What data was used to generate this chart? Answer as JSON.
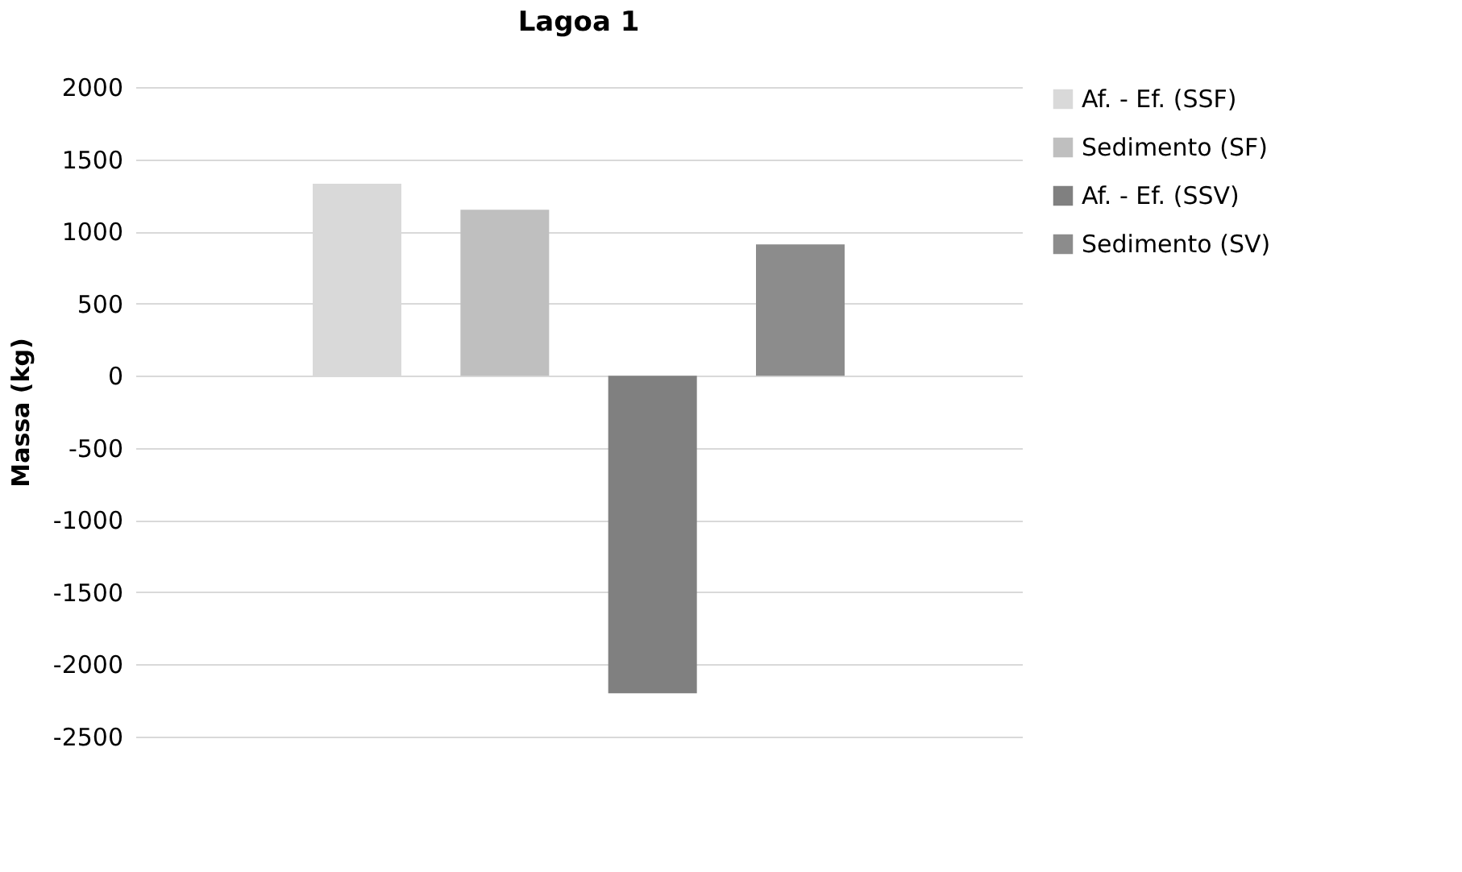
{
  "chart_data": {
    "type": "bar",
    "title": "Lagoa 1",
    "ylabel": "Massa (kg)",
    "categories": [
      null
    ],
    "series": [
      {
        "name": "Af. - Ef. (SSF)",
        "color": "#d9d9d9",
        "values": [
          1330
        ]
      },
      {
        "name": "Sedimento (SF)",
        "color": "#bfbfbf",
        "values": [
          1150
        ]
      },
      {
        "name": "Af. - Ef. (SSV)",
        "color": "#808080",
        "values": [
          -2200
        ]
      },
      {
        "name": "Sedimento (SV)",
        "color": "#8c8c8c",
        "values": [
          910
        ]
      }
    ],
    "ylim": [
      -2500,
      2000
    ],
    "yticks": [
      -2500,
      -2000,
      -1500,
      -1000,
      -500,
      0,
      500,
      1000,
      1500,
      2000
    ],
    "grid": "y",
    "legend": "right",
    "tick_labels": "y"
  }
}
